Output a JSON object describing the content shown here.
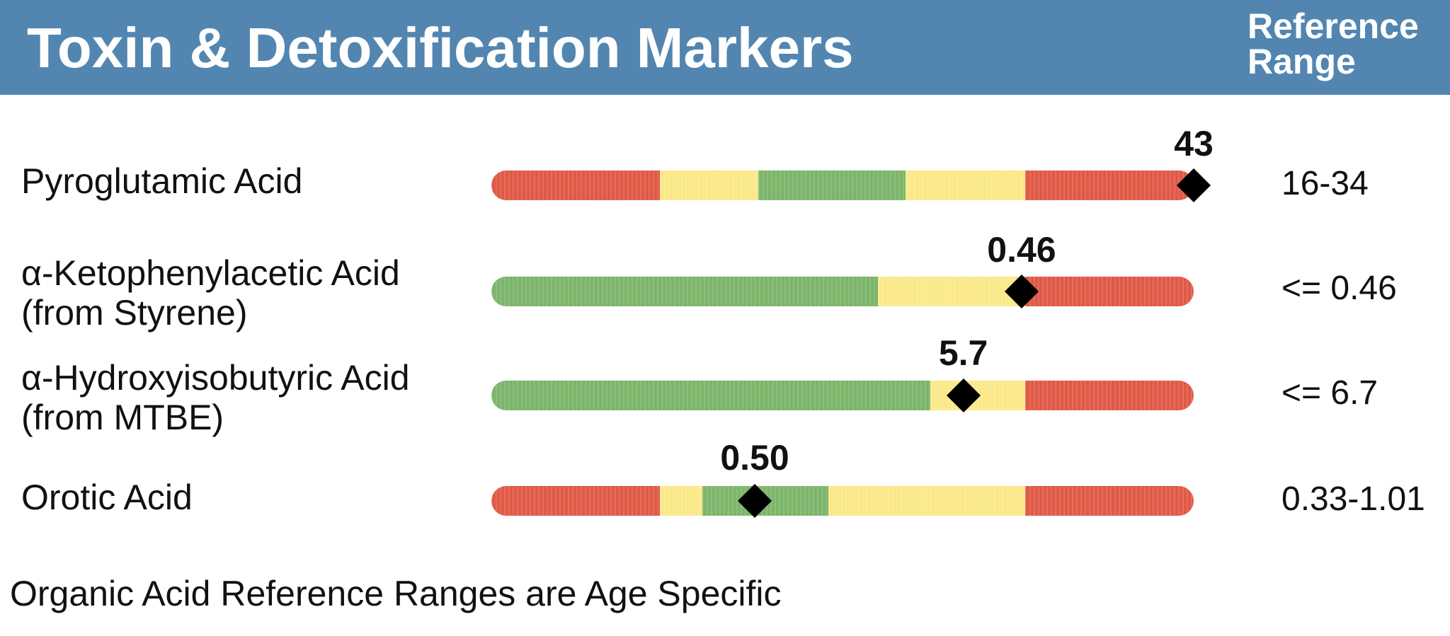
{
  "header": {
    "title": "Toxin & Detoxification Markers",
    "reference_heading": [
      "Reference",
      "Range"
    ]
  },
  "colors": {
    "header_bg": "#5286b0",
    "red": "#e05a47",
    "yellow": "#fbe98a",
    "green": "#7cb56b",
    "marker": "#000000"
  },
  "markers": [
    {
      "name": "Pyroglutamic Acid",
      "label_lines": [
        "Pyroglutamic Acid"
      ],
      "value": "43",
      "reference_range": "16-34",
      "bar_segments": [
        {
          "color": "red",
          "fraction": 0.24
        },
        {
          "color": "yellow",
          "fraction": 0.14
        },
        {
          "color": "green",
          "fraction": 0.21
        },
        {
          "color": "yellow",
          "fraction": 0.17
        },
        {
          "color": "red",
          "fraction": 0.24
        }
      ],
      "marker_fraction": 1.0
    },
    {
      "name": "α-Ketophenylacetic Acid (from Styrene)",
      "label_lines": [
        "α-Ketophenylacetic Acid",
        "(from Styrene)"
      ],
      "value": "0.46",
      "reference_range": "<= 0.46",
      "bar_segments": [
        {
          "color": "green",
          "fraction": 0.55
        },
        {
          "color": "yellow",
          "fraction": 0.21
        },
        {
          "color": "red",
          "fraction": 0.24
        }
      ],
      "marker_fraction": 0.755
    },
    {
      "name": "α-Hydroxyisobutyric Acid (from MTBE)",
      "label_lines": [
        "α-Hydroxyisobutyric Acid",
        "(from MTBE)"
      ],
      "value": "5.7",
      "reference_range": "<= 6.7",
      "bar_segments": [
        {
          "color": "green",
          "fraction": 0.625
        },
        {
          "color": "yellow",
          "fraction": 0.135
        },
        {
          "color": "red",
          "fraction": 0.24
        }
      ],
      "marker_fraction": 0.672
    },
    {
      "name": "Orotic Acid",
      "label_lines": [
        "Orotic Acid"
      ],
      "value": "0.50",
      "reference_range": "0.33-1.01",
      "bar_segments": [
        {
          "color": "red",
          "fraction": 0.24
        },
        {
          "color": "yellow",
          "fraction": 0.06
        },
        {
          "color": "green",
          "fraction": 0.18
        },
        {
          "color": "yellow",
          "fraction": 0.28
        },
        {
          "color": "red",
          "fraction": 0.24
        }
      ],
      "marker_fraction": 0.375
    }
  ],
  "footnote": "Organic Acid Reference Ranges are Age Specific"
}
